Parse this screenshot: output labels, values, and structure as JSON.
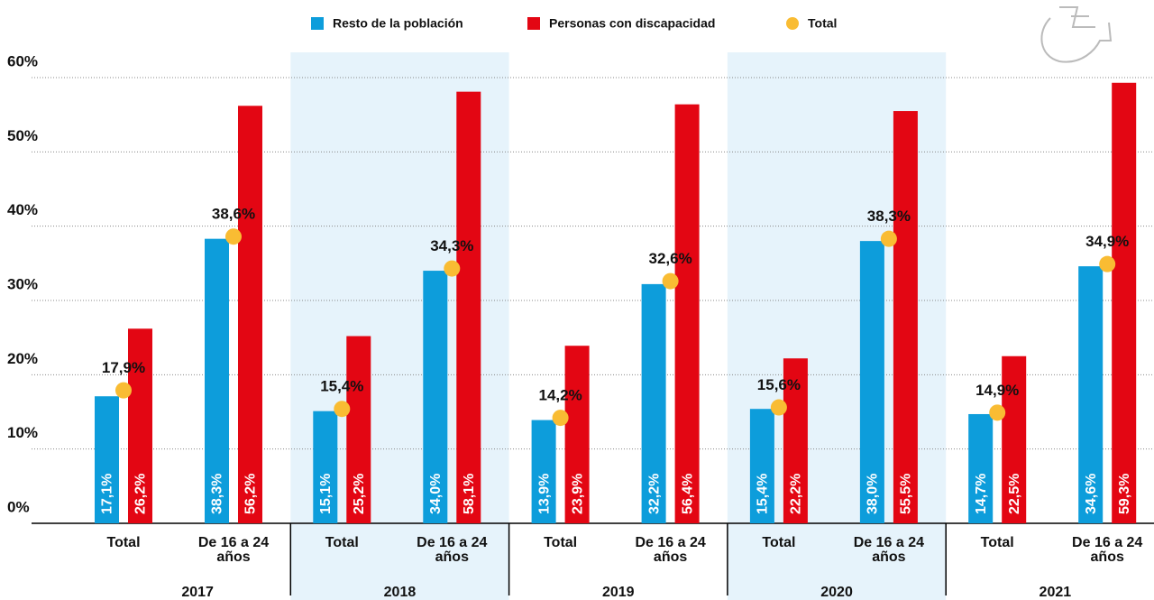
{
  "chart_data": {
    "type": "bar",
    "groups": [
      "2017",
      "2018",
      "2019",
      "2020",
      "2021"
    ],
    "categories": [
      "Total",
      "De 16 a 24 años",
      "Total",
      "De 16 a 24 años",
      "Total",
      "De 16 a 24 años",
      "Total",
      "De 16 a 24 años",
      "Total",
      "De 16 a 24 años"
    ],
    "series": [
      {
        "name": "Resto de la población",
        "color": "#0d9ddb",
        "values": [
          17.1,
          38.3,
          15.1,
          34.0,
          13.9,
          32.2,
          15.4,
          38.0,
          14.7,
          34.6
        ],
        "value_labels": [
          "17,1%",
          "38,3%",
          "15,1%",
          "34,0%",
          "13,9%",
          "32,2%",
          "15,4%",
          "38,0%",
          "14,7%",
          "34,6%"
        ]
      },
      {
        "name": "Personas con discapacidad",
        "color": "#e30613",
        "values": [
          26.2,
          56.2,
          25.2,
          58.1,
          23.9,
          56.4,
          22.2,
          55.5,
          22.5,
          59.3
        ],
        "value_labels": [
          "26,2%",
          "56,2%",
          "25,2%",
          "58,1%",
          "23,9%",
          "56,4%",
          "22,2%",
          "55,5%",
          "22,5%",
          "59,3%"
        ]
      },
      {
        "name": "Total",
        "color": "#f9bc33",
        "type": "scatter",
        "values": [
          17.9,
          38.6,
          15.4,
          34.3,
          14.2,
          32.6,
          15.6,
          38.3,
          14.9,
          34.9
        ],
        "value_labels": [
          "17,9%",
          "38,6%",
          "15,4%",
          "34,3%",
          "14,2%",
          "32,6%",
          "15,6%",
          "38,3%",
          "14,9%",
          "34,9%"
        ]
      }
    ],
    "ylim": [
      0,
      60
    ],
    "yticks": [
      {
        "value": 0,
        "label": "0%"
      },
      {
        "value": 10,
        "label": "10%"
      },
      {
        "value": 20,
        "label": "20%"
      },
      {
        "value": 30,
        "label": "30%"
      },
      {
        "value": 40,
        "label": "40%"
      },
      {
        "value": 50,
        "label": "50%"
      },
      {
        "value": 60,
        "label": "60%"
      }
    ],
    "grid": true,
    "legend": "top"
  }
}
